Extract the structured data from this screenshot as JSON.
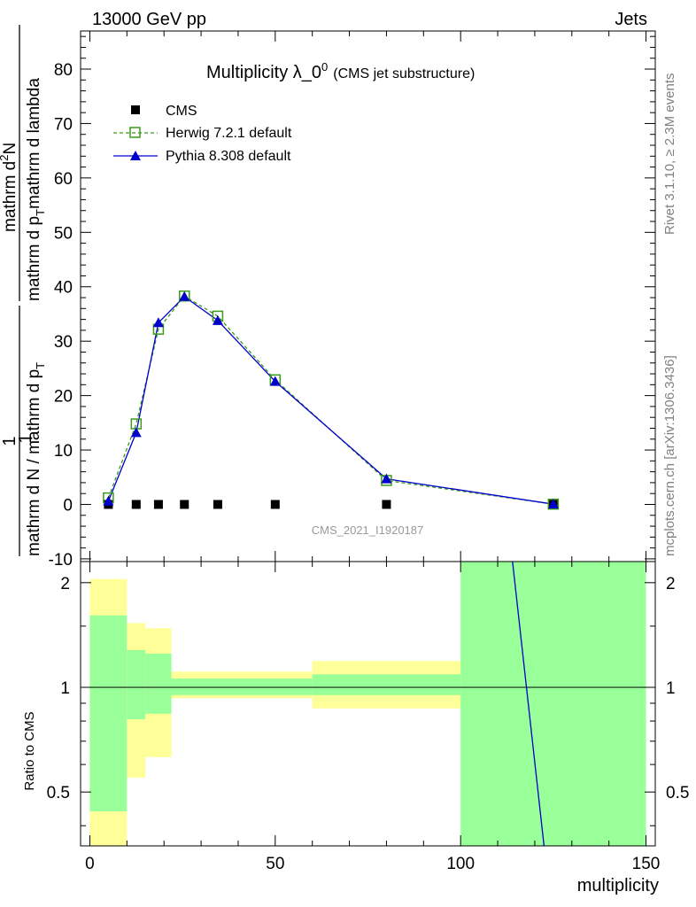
{
  "header": {
    "left": "13000 GeV pp",
    "right": "Jets"
  },
  "side": {
    "rivet": "Rivet 3.1.10, ≥ 2.3M events",
    "mcplots": "mcplots.cern.ch [arXiv:1306.3436]"
  },
  "watermark": "CMS_2021_I1920187",
  "colors": {
    "herwig": "#3a9a1a",
    "pythia": "#0000cc",
    "band_inner": "#99ff99",
    "band_outer": "#ffff99"
  },
  "chart_data": [
    {
      "type": "line",
      "title_main": "Multiplicity λ_0",
      "title_sup": "0",
      "title_sub": "(CMS jet substructure)",
      "ylabel_num": "1",
      "ylabel_den1": "mathrm d N / mathrm d p",
      "ylabel_den2": "T",
      "ylabel_num2": "mathrm d",
      "ylabel_num2_sup": "2",
      "ylabel_num2_rest": "N",
      "ylabel_den3": "mathrm d p",
      "ylabel_den3_sub": "T",
      "ylabel_den4": "mathrm d lambda",
      "xlim": [
        -2.5,
        152.5
      ],
      "ylim": [
        -10.5,
        87
      ],
      "y_ticks": [
        -10,
        0,
        10,
        20,
        30,
        40,
        50,
        60,
        70,
        80
      ],
      "legend_location": "top-left",
      "series": [
        {
          "name": "CMS",
          "x": [
            5,
            12.5,
            18.5,
            25.5,
            34.5,
            50,
            80,
            125
          ],
          "y": [
            0,
            0,
            0,
            0,
            0,
            0,
            0,
            0
          ]
        },
        {
          "name": "Herwig 7.2.1 default",
          "x": [
            5,
            12.5,
            18.5,
            25.5,
            34.5,
            50,
            80,
            125
          ],
          "y": [
            1.2,
            14.8,
            32.2,
            38.3,
            34.6,
            22.9,
            4.4,
            0.05
          ]
        },
        {
          "name": "Pythia 8.308 default",
          "x": [
            5,
            12.5,
            18.5,
            25.5,
            34.5,
            50,
            80,
            125
          ],
          "y": [
            0.6,
            13.2,
            33.4,
            38.2,
            33.8,
            22.6,
            4.7,
            0.05
          ]
        }
      ]
    },
    {
      "type": "area",
      "ylabel": "Ratio to CMS",
      "xlabel": "multiplicity",
      "xlim": [
        -2.5,
        152.5
      ],
      "ylim": [
        0.35,
        2.3
      ],
      "y_scale": "log",
      "x_ticks": [
        0,
        50,
        100,
        150
      ],
      "y_ticks": [
        0.5,
        1,
        2
      ],
      "bins": [
        {
          "x0": 0,
          "x1": 10,
          "inner": [
            0.44,
            1.61
          ],
          "outer": [
            0.33,
            2.05
          ]
        },
        {
          "x0": 10,
          "x1": 15,
          "inner": [
            0.81,
            1.28
          ],
          "outer": [
            0.55,
            1.53
          ]
        },
        {
          "x0": 15,
          "x1": 22,
          "inner": [
            0.84,
            1.25
          ],
          "outer": [
            0.63,
            1.48
          ]
        },
        {
          "x0": 22,
          "x1": 60,
          "inner": [
            0.95,
            1.06
          ],
          "outer": [
            0.93,
            1.11
          ]
        },
        {
          "x0": 60,
          "x1": 100,
          "inner": [
            0.95,
            1.09
          ],
          "outer": [
            0.87,
            1.19
          ]
        },
        {
          "x0": 100,
          "x1": 150,
          "inner": [
            0.33,
            2.3
          ],
          "outer": [
            0.33,
            2.3
          ]
        }
      ],
      "series": [
        {
          "name": "Pythia 8.308 default",
          "x": [
            114,
            122.5
          ],
          "y": [
            2.3,
            0.35
          ]
        }
      ]
    }
  ]
}
